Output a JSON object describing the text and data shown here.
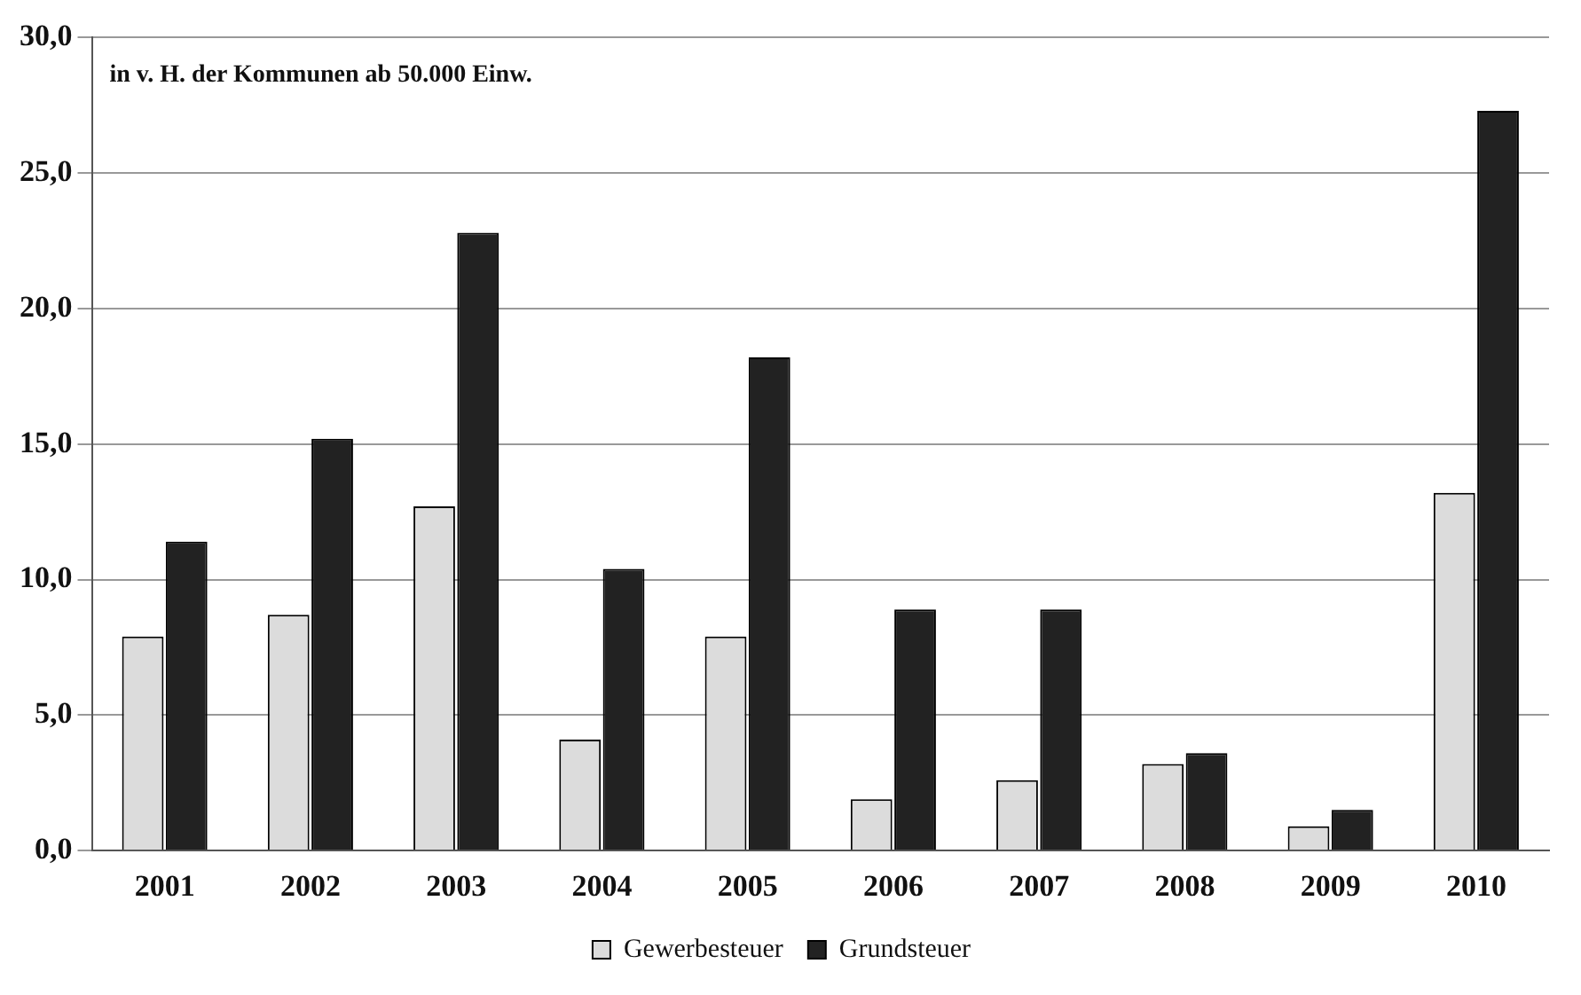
{
  "chart_data": {
    "type": "bar",
    "title": "in v. H. der Kommunen ab 50.000 Einw.",
    "categories": [
      "2001",
      "2002",
      "2003",
      "2004",
      "2005",
      "2006",
      "2007",
      "2008",
      "2009",
      "2010"
    ],
    "series": [
      {
        "name": "Gewerbesteuer",
        "color": "#dcdcdc",
        "values": [
          7.9,
          8.7,
          12.7,
          4.1,
          7.9,
          1.9,
          2.6,
          3.2,
          0.9,
          13.2
        ]
      },
      {
        "name": "Grundsteuer",
        "color": "#222222",
        "values": [
          11.4,
          15.2,
          22.8,
          10.4,
          18.2,
          8.9,
          8.9,
          3.6,
          1.5,
          27.3
        ]
      }
    ],
    "ylim": [
      0,
      30
    ],
    "yticks": [
      {
        "value": 0,
        "label": "0,0"
      },
      {
        "value": 5,
        "label": "5,0"
      },
      {
        "value": 10,
        "label": "10,0"
      },
      {
        "value": 15,
        "label": "15,0"
      },
      {
        "value": 20,
        "label": "20,0"
      },
      {
        "value": 25,
        "label": "25,0"
      },
      {
        "value": 30,
        "label": "30,0"
      }
    ],
    "grid": "y",
    "legend": "bottom"
  }
}
